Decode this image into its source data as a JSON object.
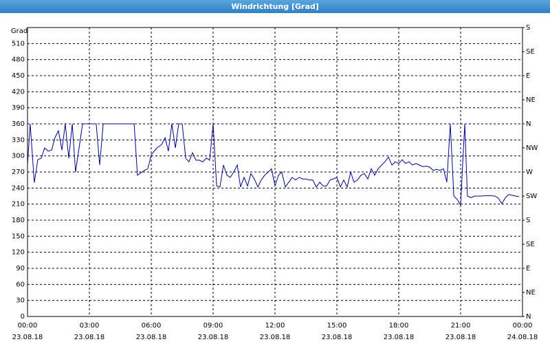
{
  "chart_data": {
    "type": "line",
    "title": "Windrichtung [Grad]",
    "y_label": "Grad",
    "color": "#00008b",
    "grid": true,
    "x": [
      0,
      0.13,
      0.33,
      0.5,
      0.67,
      0.83,
      1,
      1.17,
      1.33,
      1.5,
      1.67,
      1.83,
      2,
      2.17,
      2.33,
      2.5,
      2.67,
      3.33,
      3.5,
      3.67,
      5.17,
      5.33,
      5.67,
      5.83,
      6,
      6.27,
      6.5,
      6.67,
      6.83,
      7,
      7.17,
      7.33,
      7.5,
      7.67,
      7.83,
      8,
      8.17,
      8.33,
      8.5,
      8.67,
      8.83,
      9,
      9.17,
      9.33,
      9.5,
      9.67,
      9.83,
      10,
      10.17,
      10.33,
      10.5,
      10.67,
      10.83,
      11,
      11.17,
      11.33,
      11.5,
      11.67,
      11.83,
      12,
      12.17,
      12.33,
      12.5,
      12.67,
      12.83,
      13,
      13.17,
      13.33,
      13.5,
      13.67,
      13.83,
      14,
      14.17,
      14.33,
      14.5,
      14.67,
      14.83,
      15,
      15.17,
      15.33,
      15.5,
      15.67,
      15.83,
      16,
      16.17,
      16.33,
      16.5,
      16.67,
      16.83,
      17,
      17.17,
      17.33,
      17.5,
      17.67,
      17.83,
      18,
      18.17,
      18.33,
      18.5,
      18.67,
      18.83,
      19,
      19.17,
      19.33,
      19.5,
      19.67,
      19.83,
      20,
      20.17,
      20.33,
      20.5,
      20.67,
      20.83,
      21,
      21.1,
      21.2,
      21.33,
      21.5,
      21.67,
      22,
      22.33,
      22.67,
      22.83,
      23,
      23.17,
      23.33,
      23.67,
      23.83
    ],
    "values": [
      283,
      360,
      250,
      293,
      296,
      315,
      309,
      311,
      334,
      347,
      311,
      360,
      296,
      360,
      270,
      315,
      360,
      360,
      283,
      360,
      360,
      264,
      273,
      276,
      302,
      315,
      321,
      334,
      309,
      360,
      315,
      360,
      360,
      296,
      289,
      306,
      292,
      292,
      289,
      296,
      292,
      360,
      244,
      242,
      283,
      264,
      260,
      270,
      283,
      242,
      260,
      244,
      267,
      257,
      242,
      255,
      264,
      270,
      276,
      244,
      264,
      270,
      242,
      251,
      260,
      255,
      260,
      257,
      257,
      255,
      255,
      242,
      251,
      244,
      244,
      255,
      257,
      260,
      242,
      255,
      242,
      270,
      251,
      255,
      264,
      267,
      257,
      276,
      264,
      276,
      283,
      289,
      298,
      283,
      289,
      286,
      293,
      286,
      289,
      283,
      286,
      283,
      280,
      281,
      279,
      273,
      275,
      273,
      276,
      251,
      360,
      225,
      219,
      208,
      285,
      360,
      225,
      222,
      225,
      225,
      226,
      225,
      221,
      211,
      222,
      228,
      225,
      224
    ],
    "xlim": [
      0,
      24
    ],
    "xticks": [
      {
        "value": 0,
        "label": "00:00"
      },
      {
        "value": 3,
        "label": "03:00"
      },
      {
        "value": 6,
        "label": "06:00"
      },
      {
        "value": 9,
        "label": "09:00"
      },
      {
        "value": 12,
        "label": "12:00"
      },
      {
        "value": 15,
        "label": "15:00"
      },
      {
        "value": 18,
        "label": "18:00"
      },
      {
        "value": 21,
        "label": "21:00"
      },
      {
        "value": 24,
        "label": "00:00"
      }
    ],
    "xtick_dates": [
      "23.08.18",
      "23.08.18",
      "23.08.18",
      "23.08.18",
      "23.08.18",
      "23.08.18",
      "23.08.18",
      "23.08.18",
      "24.08.18"
    ],
    "ylim": [
      0,
      540
    ],
    "yticks": [
      0,
      30,
      60,
      90,
      120,
      150,
      180,
      210,
      240,
      270,
      300,
      330,
      360,
      390,
      420,
      450,
      480,
      510
    ],
    "y2lim": [
      0,
      540
    ],
    "y2ticks": [
      {
        "value": 0,
        "label": "N"
      },
      {
        "value": 45,
        "label": "NE"
      },
      {
        "value": 90,
        "label": "E"
      },
      {
        "value": 135,
        "label": "SE"
      },
      {
        "value": 180,
        "label": "S"
      },
      {
        "value": 225,
        "label": "SW"
      },
      {
        "value": 270,
        "label": "W"
      },
      {
        "value": 315,
        "label": "NW"
      },
      {
        "value": 360,
        "label": "N"
      },
      {
        "value": 405,
        "label": "NE"
      },
      {
        "value": 450,
        "label": "E"
      },
      {
        "value": 495,
        "label": "SE"
      },
      {
        "value": 540,
        "label": "S"
      }
    ]
  }
}
